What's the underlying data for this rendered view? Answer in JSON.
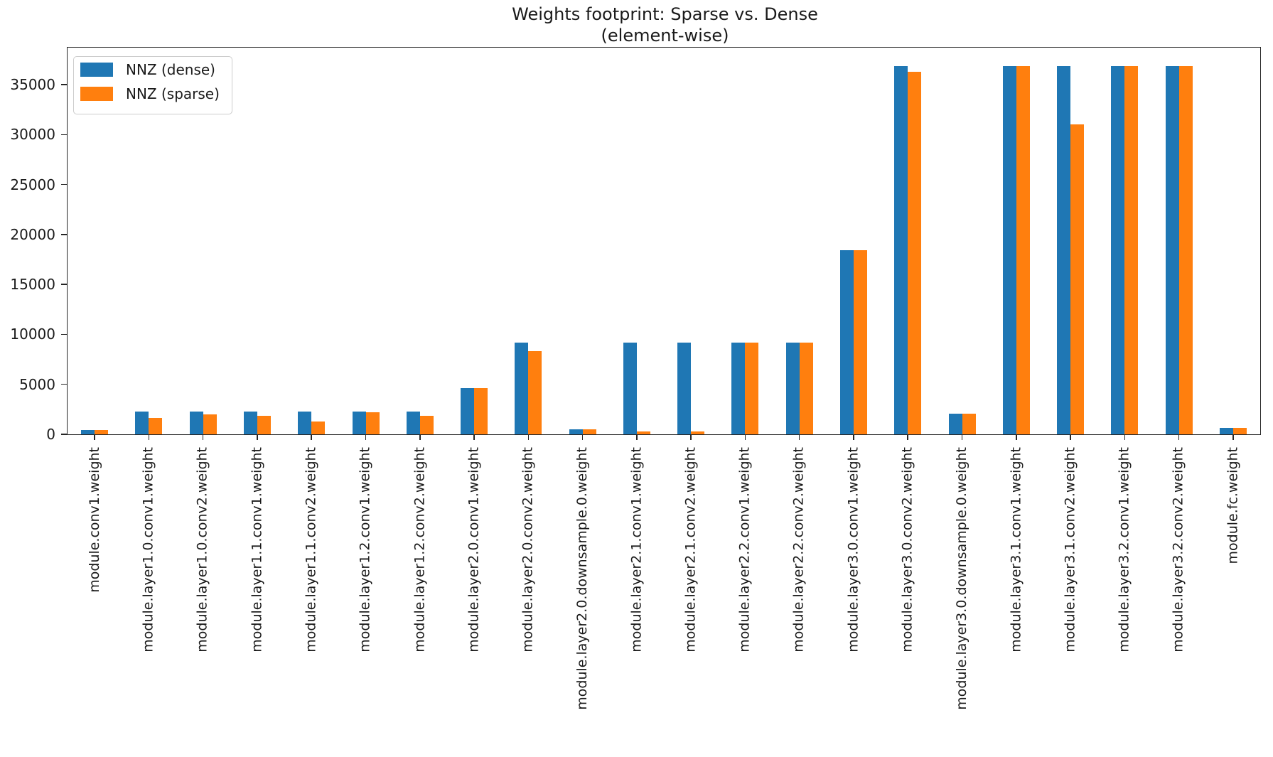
{
  "figure": {
    "title_line1": "Weights footprint: Sparse vs. Dense",
    "title_line2": "(element-wise)"
  },
  "legend": {
    "items": [
      {
        "label": "NNZ (dense)",
        "color": "#1f77b4"
      },
      {
        "label": "NNZ (sparse)",
        "color": "#ff7f0e"
      }
    ],
    "position": "upper left"
  },
  "chart_data": {
    "type": "bar",
    "title": "Weights footprint: Sparse vs. Dense\n(element-wise)",
    "xlabel": "",
    "ylabel": "",
    "grid": false,
    "legend_position": "upper left",
    "ylim": [
      0,
      38700
    ],
    "yticks": [
      0,
      5000,
      10000,
      15000,
      20000,
      25000,
      30000,
      35000
    ],
    "categories": [
      "module.conv1.weight",
      "module.layer1.0.conv1.weight",
      "module.layer1.0.conv2.weight",
      "module.layer1.1.conv1.weight",
      "module.layer1.1.conv2.weight",
      "module.layer1.2.conv1.weight",
      "module.layer1.2.conv2.weight",
      "module.layer2.0.conv1.weight",
      "module.layer2.0.conv2.weight",
      "module.layer2.0.downsample.0.weight",
      "module.layer2.1.conv1.weight",
      "module.layer2.1.conv2.weight",
      "module.layer2.2.conv1.weight",
      "module.layer2.2.conv2.weight",
      "module.layer3.0.conv1.weight",
      "module.layer3.0.conv2.weight",
      "module.layer3.0.downsample.0.weight",
      "module.layer3.1.conv1.weight",
      "module.layer3.1.conv2.weight",
      "module.layer3.2.conv1.weight",
      "module.layer3.2.conv2.weight",
      "module.fc.weight"
    ],
    "series": [
      {
        "name": "NNZ (dense)",
        "color": "#1f77b4",
        "values": [
          432,
          2304,
          2304,
          2304,
          2304,
          2304,
          2304,
          4608,
          9216,
          512,
          9216,
          9216,
          9216,
          9216,
          18432,
          36864,
          2048,
          36864,
          36864,
          36864,
          36864,
          640
        ]
      },
      {
        "name": "NNZ (sparse)",
        "color": "#ff7f0e",
        "values": [
          432,
          1610,
          2030,
          1845,
          1280,
          2230,
          1845,
          4608,
          8350,
          512,
          280,
          280,
          9216,
          9216,
          18432,
          36320,
          2048,
          36864,
          31050,
          36864,
          36864,
          640
        ]
      }
    ]
  }
}
